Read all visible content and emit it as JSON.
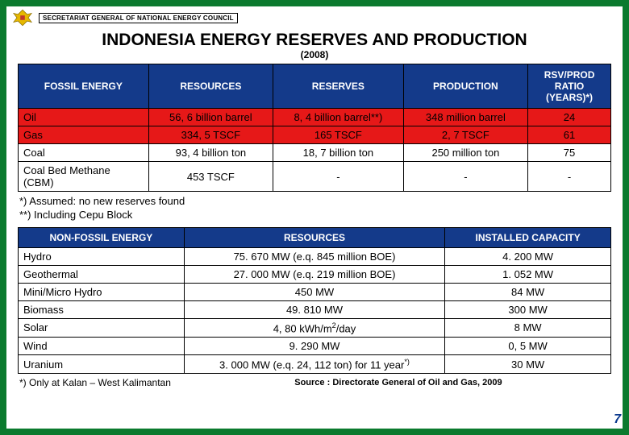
{
  "header": {
    "secretariat": "SECRETARIAT GENERAL OF NATIONAL ENERGY COUNCIL",
    "title": "INDONESIA ENERGY RESERVES AND PRODUCTION",
    "subtitle": "(2008)"
  },
  "fossil": {
    "headers": [
      "FOSSIL ENERGY",
      "RESOURCES",
      "RESERVES",
      "PRODUCTION",
      "RSV/PROD RATIO (YEARS)*)"
    ],
    "rows": [
      {
        "label": "Oil",
        "resources": "56, 6 billion barrel",
        "reserves": "8, 4 billion barrel**)",
        "production": "348 million barrel",
        "ratio": "24",
        "cls": "redrow"
      },
      {
        "label": "Gas",
        "resources": "334, 5 TSCF",
        "reserves": "165 TSCF",
        "production": "2, 7 TSCF",
        "ratio": "61",
        "cls": "redrow"
      },
      {
        "label": "Coal",
        "resources": "93, 4 billion ton",
        "reserves": "18, 7 billion ton",
        "production": "250 million ton",
        "ratio": "75",
        "cls": "whiterow"
      },
      {
        "label": "Coal Bed Methane (CBM)",
        "resources": "453 TSCF",
        "reserves": "-",
        "production": "-",
        "ratio": "-",
        "cls": "whiterow"
      }
    ]
  },
  "notes": {
    "n1": "*) Assumed: no new reserves found",
    "n2": "**) Including Cepu Block"
  },
  "nonfossil": {
    "headers": [
      "NON-FOSSIL ENERGY",
      "RESOURCES",
      "INSTALLED CAPACITY"
    ],
    "rows": [
      {
        "label": "Hydro",
        "resources": "75. 670 MW (e.q. 845 million BOE)",
        "capacity": "4. 200 MW"
      },
      {
        "label": "Geothermal",
        "resources": "27. 000 MW (e.q. 219 million BOE)",
        "capacity": "1. 052 MW"
      },
      {
        "label": "Mini/Micro Hydro",
        "resources": "450 MW",
        "capacity": "84 MW"
      },
      {
        "label": "Biomass",
        "resources": "49. 810 MW",
        "capacity": "300 MW"
      },
      {
        "label": "Solar",
        "resources": "4, 80 kWh/m²/day",
        "capacity": "8 MW"
      },
      {
        "label": "Wind",
        "resources": "9. 290 MW",
        "capacity": "0, 5 MW"
      },
      {
        "label": "Uranium",
        "resources": "3. 000 MW (e.q. 24, 112 ton) for 11 year*)",
        "capacity": "30 MW"
      }
    ]
  },
  "footer": {
    "note3": "*) Only at Kalan – West Kalimantan",
    "source": "Source : Directorate General of Oil and Gas, 2009",
    "page": "7"
  },
  "colors": {
    "frame": "#0b7a2e",
    "header_bg": "#143a8a",
    "red_row": "#e61818"
  }
}
